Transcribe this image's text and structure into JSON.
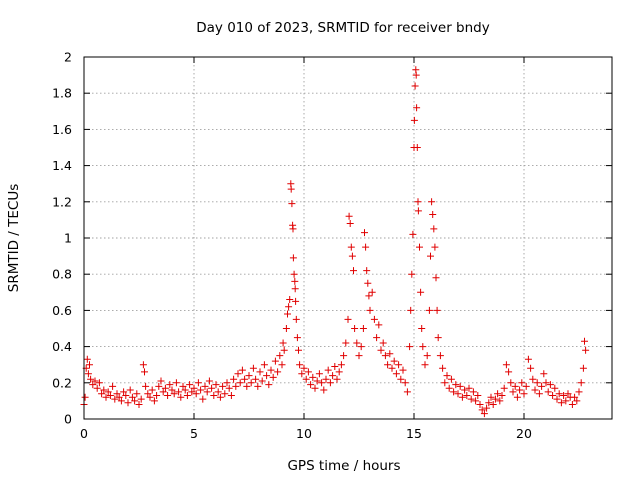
{
  "chart_data": {
    "type": "scatter",
    "title": "Day 010 of 2023, SRMTID for receiver bndy",
    "xlabel": "GPS time / hours",
    "ylabel": "SRMTID / TECUs",
    "xlim": [
      0,
      24
    ],
    "ylim": [
      0,
      2
    ],
    "xticks": [
      0,
      5,
      10,
      15,
      20
    ],
    "xtick_labels": [
      "0",
      "5",
      "10",
      "15",
      "20"
    ],
    "yticks": [
      0,
      0.2,
      0.4,
      0.6,
      0.8,
      1,
      1.2,
      1.4,
      1.6,
      1.8,
      2
    ],
    "ytick_labels": [
      "0",
      "0.2",
      "0.4",
      "0.6",
      "0.8",
      "1",
      "1.2",
      "1.4",
      "1.6",
      "1.8",
      "2"
    ],
    "grid": true,
    "marker": "+",
    "series_color": "#e00000",
    "series": [
      {
        "name": "SRMTID",
        "points": [
          [
            0.0,
            0.08
          ],
          [
            0.05,
            0.12
          ],
          [
            0.1,
            0.28
          ],
          [
            0.15,
            0.33
          ],
          [
            0.2,
            0.25
          ],
          [
            0.25,
            0.3
          ],
          [
            0.3,
            0.22
          ],
          [
            0.4,
            0.19
          ],
          [
            0.5,
            0.21
          ],
          [
            0.6,
            0.17
          ],
          [
            0.7,
            0.2
          ],
          [
            0.8,
            0.14
          ],
          [
            0.9,
            0.16
          ],
          [
            1.0,
            0.12
          ],
          [
            1.1,
            0.15
          ],
          [
            1.2,
            0.13
          ],
          [
            1.3,
            0.18
          ],
          [
            1.4,
            0.11
          ],
          [
            1.5,
            0.14
          ],
          [
            1.6,
            0.12
          ],
          [
            1.7,
            0.1
          ],
          [
            1.8,
            0.15
          ],
          [
            1.9,
            0.13
          ],
          [
            2.0,
            0.09
          ],
          [
            2.1,
            0.16
          ],
          [
            2.2,
            0.12
          ],
          [
            2.3,
            0.1
          ],
          [
            2.4,
            0.14
          ],
          [
            2.5,
            0.08
          ],
          [
            2.6,
            0.11
          ],
          [
            2.7,
            0.3
          ],
          [
            2.75,
            0.26
          ],
          [
            2.8,
            0.18
          ],
          [
            2.9,
            0.14
          ],
          [
            3.0,
            0.12
          ],
          [
            3.1,
            0.16
          ],
          [
            3.2,
            0.1
          ],
          [
            3.3,
            0.13
          ],
          [
            3.4,
            0.18
          ],
          [
            3.5,
            0.21
          ],
          [
            3.6,
            0.15
          ],
          [
            3.7,
            0.17
          ],
          [
            3.8,
            0.13
          ],
          [
            3.9,
            0.19
          ],
          [
            4.0,
            0.16
          ],
          [
            4.1,
            0.14
          ],
          [
            4.2,
            0.2
          ],
          [
            4.3,
            0.15
          ],
          [
            4.4,
            0.12
          ],
          [
            4.5,
            0.18
          ],
          [
            4.6,
            0.16
          ],
          [
            4.7,
            0.13
          ],
          [
            4.8,
            0.19
          ],
          [
            4.9,
            0.15
          ],
          [
            5.0,
            0.17
          ],
          [
            5.1,
            0.14
          ],
          [
            5.2,
            0.2
          ],
          [
            5.3,
            0.16
          ],
          [
            5.4,
            0.11
          ],
          [
            5.5,
            0.18
          ],
          [
            5.6,
            0.15
          ],
          [
            5.7,
            0.21
          ],
          [
            5.8,
            0.17
          ],
          [
            5.9,
            0.13
          ],
          [
            6.0,
            0.19
          ],
          [
            6.1,
            0.15
          ],
          [
            6.2,
            0.12
          ],
          [
            6.3,
            0.18
          ],
          [
            6.4,
            0.14
          ],
          [
            6.5,
            0.2
          ],
          [
            6.6,
            0.17
          ],
          [
            6.7,
            0.13
          ],
          [
            6.8,
            0.22
          ],
          [
            6.9,
            0.18
          ],
          [
            7.0,
            0.25
          ],
          [
            7.1,
            0.2
          ],
          [
            7.2,
            0.27
          ],
          [
            7.3,
            0.22
          ],
          [
            7.4,
            0.18
          ],
          [
            7.5,
            0.24
          ],
          [
            7.6,
            0.2
          ],
          [
            7.7,
            0.28
          ],
          [
            7.8,
            0.22
          ],
          [
            7.9,
            0.18
          ],
          [
            8.0,
            0.26
          ],
          [
            8.1,
            0.21
          ],
          [
            8.2,
            0.3
          ],
          [
            8.3,
            0.24
          ],
          [
            8.4,
            0.19
          ],
          [
            8.5,
            0.27
          ],
          [
            8.6,
            0.23
          ],
          [
            8.7,
            0.32
          ],
          [
            8.8,
            0.26
          ],
          [
            8.9,
            0.35
          ],
          [
            9.0,
            0.3
          ],
          [
            9.05,
            0.42
          ],
          [
            9.1,
            0.38
          ],
          [
            9.2,
            0.5
          ],
          [
            9.25,
            0.58
          ],
          [
            9.3,
            0.62
          ],
          [
            9.35,
            0.66
          ],
          [
            9.4,
            1.3
          ],
          [
            9.42,
            1.27
          ],
          [
            9.45,
            1.19
          ],
          [
            9.48,
            1.07
          ],
          [
            9.5,
            1.05
          ],
          [
            9.52,
            0.89
          ],
          [
            9.55,
            0.8
          ],
          [
            9.58,
            0.76
          ],
          [
            9.6,
            0.72
          ],
          [
            9.62,
            0.65
          ],
          [
            9.65,
            0.55
          ],
          [
            9.7,
            0.45
          ],
          [
            9.75,
            0.38
          ],
          [
            9.8,
            0.3
          ],
          [
            9.9,
            0.25
          ],
          [
            10.0,
            0.28
          ],
          [
            10.1,
            0.22
          ],
          [
            10.2,
            0.26
          ],
          [
            10.3,
            0.19
          ],
          [
            10.4,
            0.23
          ],
          [
            10.5,
            0.17
          ],
          [
            10.6,
            0.21
          ],
          [
            10.7,
            0.25
          ],
          [
            10.8,
            0.2
          ],
          [
            10.9,
            0.16
          ],
          [
            11.0,
            0.22
          ],
          [
            11.1,
            0.27
          ],
          [
            11.2,
            0.2
          ],
          [
            11.3,
            0.24
          ],
          [
            11.4,
            0.29
          ],
          [
            11.5,
            0.22
          ],
          [
            11.6,
            0.26
          ],
          [
            11.7,
            0.3
          ],
          [
            11.8,
            0.35
          ],
          [
            11.9,
            0.42
          ],
          [
            12.0,
            0.55
          ],
          [
            12.05,
            1.12
          ],
          [
            12.1,
            1.08
          ],
          [
            12.15,
            0.95
          ],
          [
            12.2,
            0.9
          ],
          [
            12.25,
            0.82
          ],
          [
            12.3,
            0.5
          ],
          [
            12.4,
            0.42
          ],
          [
            12.5,
            0.35
          ],
          [
            12.6,
            0.4
          ],
          [
            12.7,
            0.5
          ],
          [
            12.75,
            1.03
          ],
          [
            12.8,
            0.95
          ],
          [
            12.85,
            0.82
          ],
          [
            12.9,
            0.75
          ],
          [
            12.95,
            0.68
          ],
          [
            13.0,
            0.6
          ],
          [
            13.1,
            0.7
          ],
          [
            13.2,
            0.55
          ],
          [
            13.3,
            0.45
          ],
          [
            13.4,
            0.52
          ],
          [
            13.5,
            0.38
          ],
          [
            13.6,
            0.42
          ],
          [
            13.7,
            0.35
          ],
          [
            13.8,
            0.3
          ],
          [
            13.9,
            0.36
          ],
          [
            14.0,
            0.28
          ],
          [
            14.1,
            0.32
          ],
          [
            14.2,
            0.25
          ],
          [
            14.3,
            0.3
          ],
          [
            14.4,
            0.22
          ],
          [
            14.5,
            0.27
          ],
          [
            14.6,
            0.2
          ],
          [
            14.7,
            0.15
          ],
          [
            14.8,
            0.4
          ],
          [
            14.85,
            0.6
          ],
          [
            14.9,
            0.8
          ],
          [
            14.95,
            1.02
          ],
          [
            15.0,
            1.5
          ],
          [
            15.02,
            1.65
          ],
          [
            15.05,
            1.84
          ],
          [
            15.08,
            1.93
          ],
          [
            15.1,
            1.9
          ],
          [
            15.12,
            1.72
          ],
          [
            15.15,
            1.5
          ],
          [
            15.18,
            1.2
          ],
          [
            15.2,
            1.15
          ],
          [
            15.25,
            0.95
          ],
          [
            15.3,
            0.7
          ],
          [
            15.35,
            0.5
          ],
          [
            15.4,
            0.4
          ],
          [
            15.5,
            0.3
          ],
          [
            15.6,
            0.35
          ],
          [
            15.7,
            0.6
          ],
          [
            15.75,
            0.9
          ],
          [
            15.8,
            1.2
          ],
          [
            15.85,
            1.13
          ],
          [
            15.9,
            1.05
          ],
          [
            15.95,
            0.95
          ],
          [
            16.0,
            0.78
          ],
          [
            16.05,
            0.6
          ],
          [
            16.1,
            0.45
          ],
          [
            16.2,
            0.35
          ],
          [
            16.3,
            0.28
          ],
          [
            16.4,
            0.2
          ],
          [
            16.5,
            0.24
          ],
          [
            16.6,
            0.17
          ],
          [
            16.7,
            0.22
          ],
          [
            16.8,
            0.15
          ],
          [
            16.9,
            0.19
          ],
          [
            17.0,
            0.14
          ],
          [
            17.1,
            0.18
          ],
          [
            17.2,
            0.12
          ],
          [
            17.3,
            0.16
          ],
          [
            17.4,
            0.13
          ],
          [
            17.5,
            0.17
          ],
          [
            17.6,
            0.11
          ],
          [
            17.7,
            0.15
          ],
          [
            17.8,
            0.1
          ],
          [
            17.9,
            0.13
          ],
          [
            18.0,
            0.08
          ],
          [
            18.1,
            0.05
          ],
          [
            18.2,
            0.03
          ],
          [
            18.3,
            0.06
          ],
          [
            18.4,
            0.09
          ],
          [
            18.5,
            0.12
          ],
          [
            18.6,
            0.08
          ],
          [
            18.7,
            0.11
          ],
          [
            18.8,
            0.14
          ],
          [
            18.9,
            0.1
          ],
          [
            19.0,
            0.13
          ],
          [
            19.1,
            0.17
          ],
          [
            19.2,
            0.3
          ],
          [
            19.3,
            0.26
          ],
          [
            19.4,
            0.2
          ],
          [
            19.5,
            0.15
          ],
          [
            19.6,
            0.18
          ],
          [
            19.7,
            0.12
          ],
          [
            19.8,
            0.16
          ],
          [
            19.9,
            0.2
          ],
          [
            20.0,
            0.14
          ],
          [
            20.1,
            0.18
          ],
          [
            20.2,
            0.33
          ],
          [
            20.3,
            0.28
          ],
          [
            20.4,
            0.22
          ],
          [
            20.5,
            0.16
          ],
          [
            20.6,
            0.2
          ],
          [
            20.7,
            0.14
          ],
          [
            20.8,
            0.18
          ],
          [
            20.9,
            0.25
          ],
          [
            21.0,
            0.2
          ],
          [
            21.1,
            0.15
          ],
          [
            21.2,
            0.19
          ],
          [
            21.3,
            0.13
          ],
          [
            21.4,
            0.17
          ],
          [
            21.5,
            0.11
          ],
          [
            21.6,
            0.14
          ],
          [
            21.7,
            0.09
          ],
          [
            21.8,
            0.13
          ],
          [
            21.9,
            0.1
          ],
          [
            22.0,
            0.14
          ],
          [
            22.1,
            0.12
          ],
          [
            22.2,
            0.08
          ],
          [
            22.3,
            0.12
          ],
          [
            22.4,
            0.1
          ],
          [
            22.5,
            0.15
          ],
          [
            22.6,
            0.2
          ],
          [
            22.7,
            0.28
          ],
          [
            22.75,
            0.43
          ],
          [
            22.8,
            0.38
          ]
        ]
      }
    ]
  }
}
